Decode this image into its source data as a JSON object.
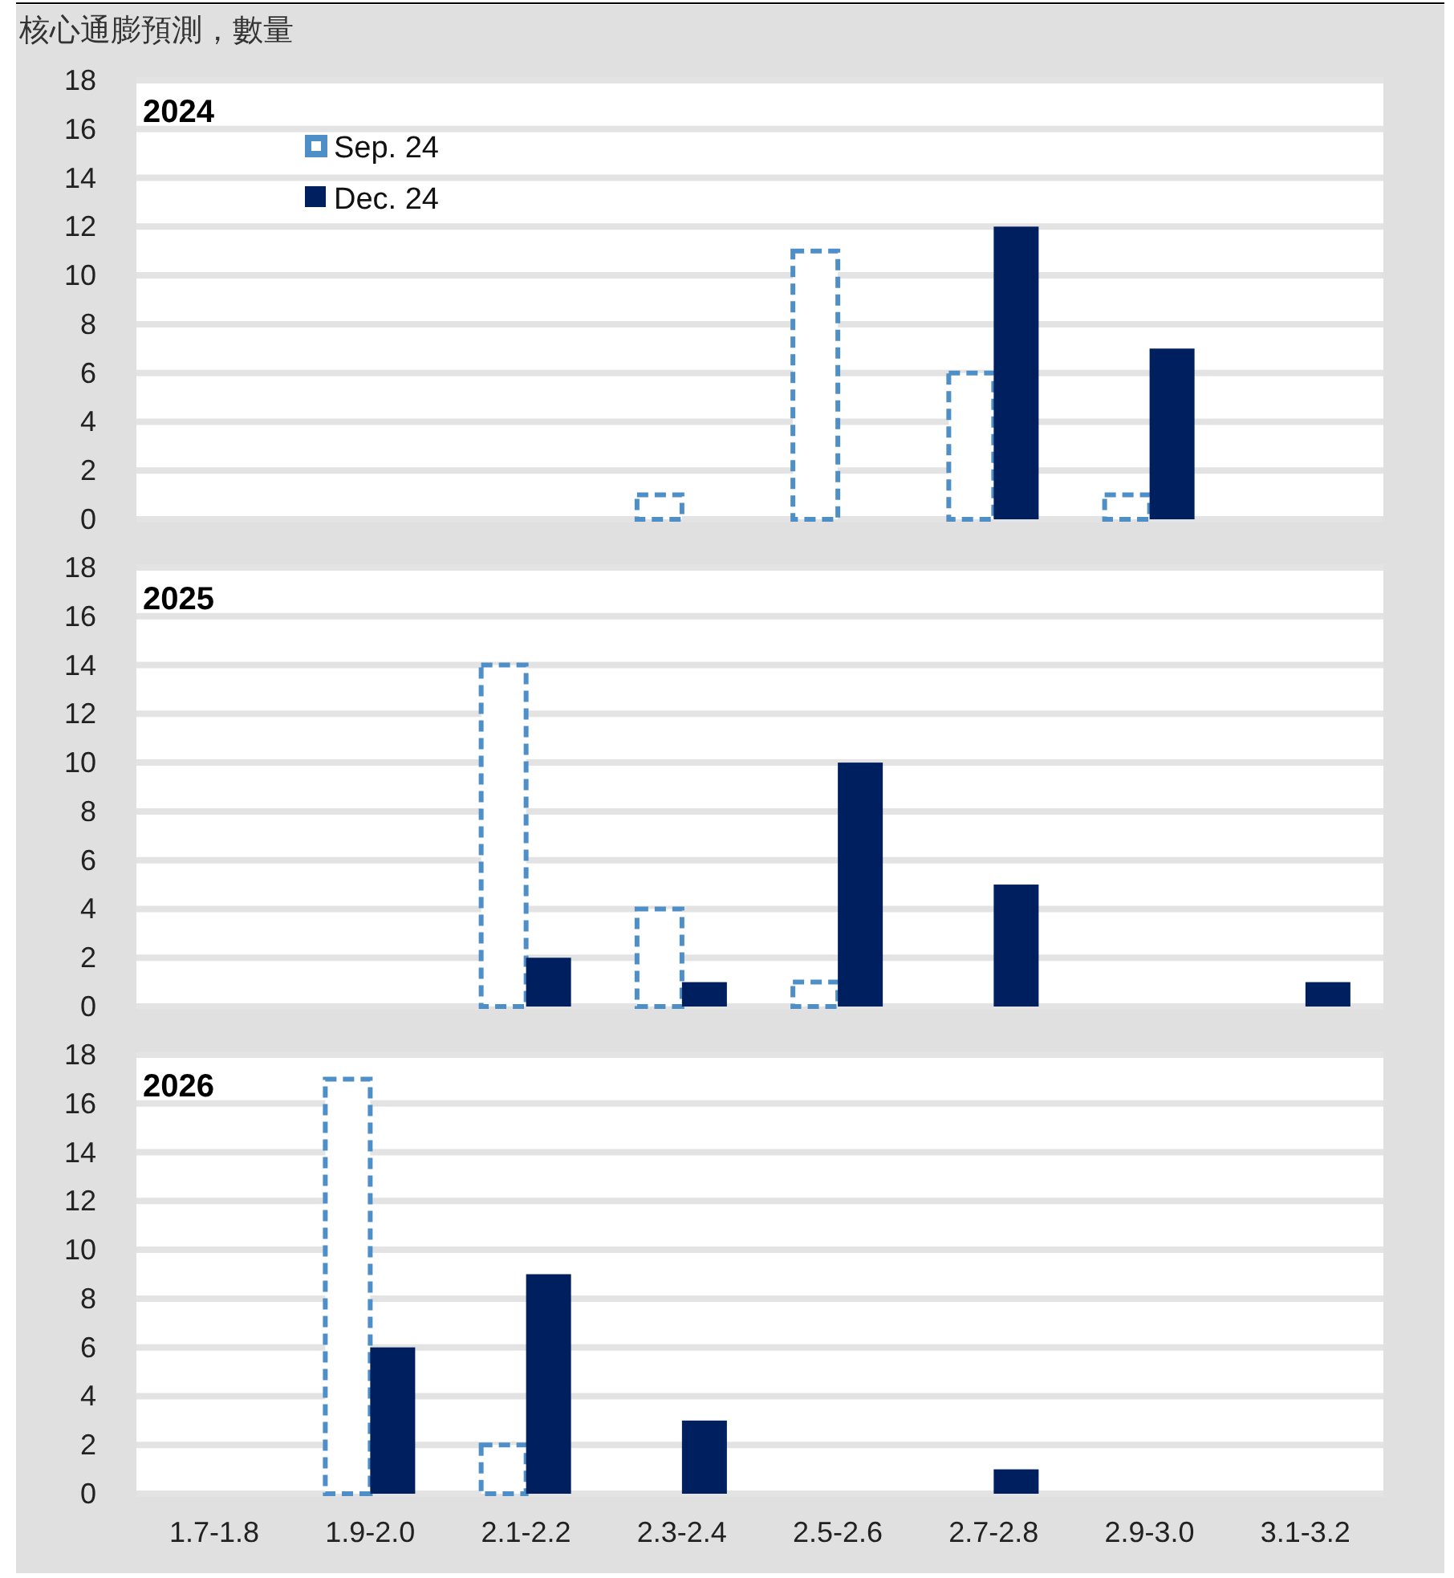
{
  "chart_data": [
    {
      "type": "bar",
      "title": "核心通膨預測，數量",
      "subtitle": "2024",
      "categories": [
        null,
        null,
        null,
        null,
        null,
        null,
        null,
        null
      ],
      "series": [
        {
          "name": "Sep. 24",
          "color": "#4f8fc8",
          "line_style": "dashed",
          "values": [
            0,
            0,
            0,
            1,
            11,
            6,
            1,
            0
          ]
        },
        {
          "name": "Dec. 24",
          "color": "#001f5f",
          "line_style": "solid",
          "values": [
            0,
            0,
            0,
            0,
            0,
            12,
            7,
            0
          ]
        }
      ],
      "ylim": [
        0,
        18
      ],
      "yticks": [
        0,
        2,
        4,
        6,
        8,
        10,
        12,
        14,
        16,
        18
      ],
      "grid": "y",
      "legend": "top left"
    },
    {
      "type": "bar",
      "subtitle": "2025",
      "categories": [
        null,
        null,
        null,
        null,
        null,
        null,
        null,
        null
      ],
      "series": [
        {
          "color": "#4f8fc8",
          "line_style": "dashed",
          "values": [
            0,
            0,
            14,
            4,
            1,
            0,
            0,
            0
          ]
        },
        {
          "color": "#001f5f",
          "line_style": "solid",
          "values": [
            0,
            0,
            2,
            1,
            10,
            5,
            0,
            1
          ]
        }
      ],
      "ylim": [
        0,
        18
      ],
      "yticks": [
        0,
        2,
        4,
        6,
        8,
        10,
        12,
        14,
        16,
        18
      ],
      "grid": "y"
    },
    {
      "type": "bar",
      "subtitle": "2026",
      "categories": [
        "1.7-1.8",
        "1.9-2.0",
        "2.1-2.2",
        "2.3-2.4",
        "2.5-2.6",
        "2.7-2.8",
        "2.9-3.0",
        "3.1-3.2"
      ],
      "series": [
        {
          "color": "#4f8fc8",
          "line_style": "dashed",
          "values": [
            0,
            17,
            2,
            0,
            0,
            0,
            0,
            0
          ]
        },
        {
          "color": "#001f5f",
          "line_style": "solid",
          "values": [
            0,
            6,
            9,
            3,
            0,
            1,
            0,
            0
          ]
        }
      ],
      "ylim": [
        0,
        18
      ],
      "yticks": [
        0,
        2,
        4,
        6,
        8,
        10,
        12,
        14,
        16,
        18
      ],
      "grid": "y"
    }
  ]
}
